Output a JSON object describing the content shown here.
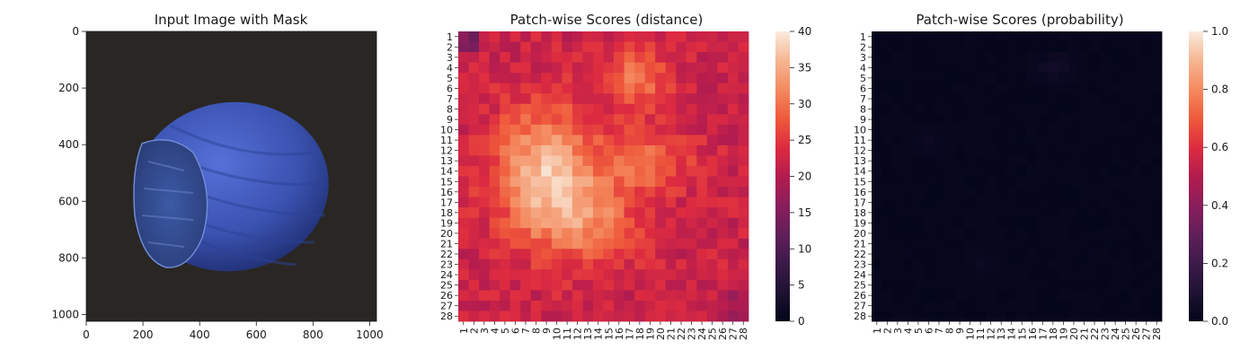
{
  "chart_data": [
    {
      "type": "image",
      "title": "Input Image with Mask",
      "xlim": [
        0,
        1024
      ],
      "ylim": [
        1024,
        0
      ],
      "xticks": [
        0,
        200,
        400,
        600,
        800,
        1000
      ],
      "yticks": [
        0,
        200,
        400,
        600,
        800,
        1000
      ],
      "background_color": "#2a2624",
      "object": "blue-tinted hazelnut",
      "object_color": "#3d56b8"
    },
    {
      "type": "heatmap",
      "title": "Patch-wise Scores (distance)",
      "rows": [
        "1",
        "2",
        "3",
        "4",
        "5",
        "6",
        "7",
        "8",
        "9",
        "10",
        "11",
        "12",
        "13",
        "14",
        "15",
        "16",
        "17",
        "18",
        "19",
        "20",
        "21",
        "22",
        "23",
        "24",
        "25",
        "26",
        "27",
        "28"
      ],
      "cols": [
        "1",
        "2",
        "3",
        "4",
        "5",
        "6",
        "7",
        "8",
        "9",
        "10",
        "11",
        "12",
        "13",
        "14",
        "15",
        "16",
        "17",
        "18",
        "19",
        "20",
        "21",
        "22",
        "23",
        "24",
        "25",
        "26",
        "27",
        "28"
      ],
      "colormap": "rocket",
      "vmin": 0,
      "vmax": 40,
      "colorbar_ticks": [
        0,
        5,
        10,
        15,
        20,
        25,
        30,
        35,
        40
      ],
      "approx_values": {
        "background": 24,
        "center_max": 40,
        "top_left_min": 14
      }
    },
    {
      "type": "heatmap",
      "title": "Patch-wise Scores (probability)",
      "rows": [
        "1",
        "2",
        "3",
        "4",
        "5",
        "6",
        "7",
        "8",
        "9",
        "10",
        "11",
        "12",
        "13",
        "14",
        "15",
        "16",
        "17",
        "18",
        "19",
        "20",
        "21",
        "22",
        "23",
        "24",
        "25",
        "26",
        "27",
        "28"
      ],
      "cols": [
        "1",
        "2",
        "3",
        "4",
        "5",
        "6",
        "7",
        "8",
        "9",
        "10",
        "11",
        "12",
        "13",
        "14",
        "15",
        "16",
        "17",
        "18",
        "19",
        "20",
        "21",
        "22",
        "23",
        "24",
        "25",
        "26",
        "27",
        "28"
      ],
      "colormap": "rocket",
      "vmin": 0.0,
      "vmax": 1.0,
      "colorbar_ticks": [
        "0.0",
        "0.2",
        "0.4",
        "0.6",
        "0.8",
        "1.0"
      ],
      "approx_values": {
        "background": 0.0,
        "max": 0.05
      }
    }
  ]
}
